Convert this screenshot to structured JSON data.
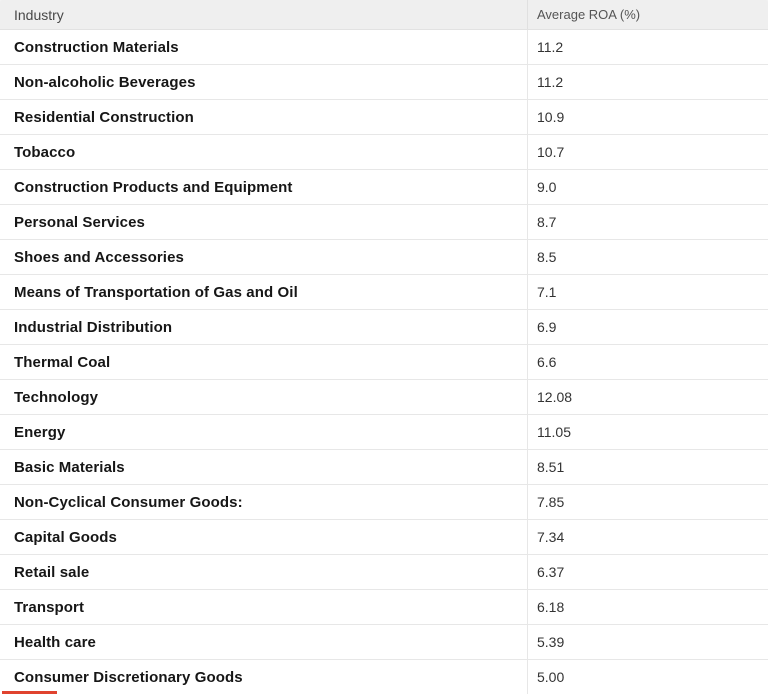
{
  "table": {
    "columns": [
      {
        "label": "Industry"
      },
      {
        "label": "Average ROA (%)"
      }
    ],
    "rows": [
      {
        "industry": "Construction Materials",
        "roa": "11.2"
      },
      {
        "industry": "Non-alcoholic Beverages",
        "roa": "11.2"
      },
      {
        "industry": "Residential Construction",
        "roa": "10.9"
      },
      {
        "industry": "Tobacco",
        "roa": "10.7"
      },
      {
        "industry": "Construction Products and Equipment",
        "roa": "9.0"
      },
      {
        "industry": "Personal Services",
        "roa": "8.7"
      },
      {
        "industry": "Shoes and Accessories",
        "roa": "8.5"
      },
      {
        "industry": "Means of Transportation of Gas and Oil",
        "roa": "7.1"
      },
      {
        "industry": "Industrial Distribution",
        "roa": "6.9"
      },
      {
        "industry": "Thermal Coal",
        "roa": "6.6"
      },
      {
        "industry": "Technology",
        "roa": "12.08"
      },
      {
        "industry": "Energy",
        "roa": "11.05"
      },
      {
        "industry": "Basic Materials",
        "roa": "8.51"
      },
      {
        "industry": "Non-Cyclical Consumer Goods:",
        "roa": "7.85"
      },
      {
        "industry": "Capital Goods",
        "roa": "7.34"
      },
      {
        "industry": "Retail sale",
        "roa": "6.37"
      },
      {
        "industry": "Transport",
        "roa": "6.18"
      },
      {
        "industry": "Health care",
        "roa": "5.39"
      },
      {
        "industry": "Consumer Discretionary Goods",
        "roa": "5.00"
      }
    ]
  },
  "colors": {
    "header_background": "#efefef",
    "header_text": "#4a4a4a",
    "row_separator": "#e7e7e7",
    "industry_text": "#161616",
    "value_text": "#333333",
    "accent_red": "#e0432f"
  },
  "chart_data": {
    "type": "table",
    "columns": [
      "Industry",
      "Average ROA (%)"
    ],
    "rows": [
      [
        "Construction Materials",
        11.2
      ],
      [
        "Non-alcoholic Beverages",
        11.2
      ],
      [
        "Residential Construction",
        10.9
      ],
      [
        "Tobacco",
        10.7
      ],
      [
        "Construction Products and Equipment",
        9.0
      ],
      [
        "Personal Services",
        8.7
      ],
      [
        "Shoes and Accessories",
        8.5
      ],
      [
        "Means of Transportation of Gas and Oil",
        7.1
      ],
      [
        "Industrial Distribution",
        6.9
      ],
      [
        "Thermal Coal",
        6.6
      ],
      [
        "Technology",
        12.08
      ],
      [
        "Energy",
        11.05
      ],
      [
        "Basic Materials",
        8.51
      ],
      [
        "Non-Cyclical Consumer Goods:",
        7.85
      ],
      [
        "Capital Goods",
        7.34
      ],
      [
        "Retail sale",
        6.37
      ],
      [
        "Transport",
        6.18
      ],
      [
        "Health care",
        5.39
      ],
      [
        "Consumer Discretionary Goods",
        5.0
      ]
    ],
    "title": "",
    "legend": false
  }
}
